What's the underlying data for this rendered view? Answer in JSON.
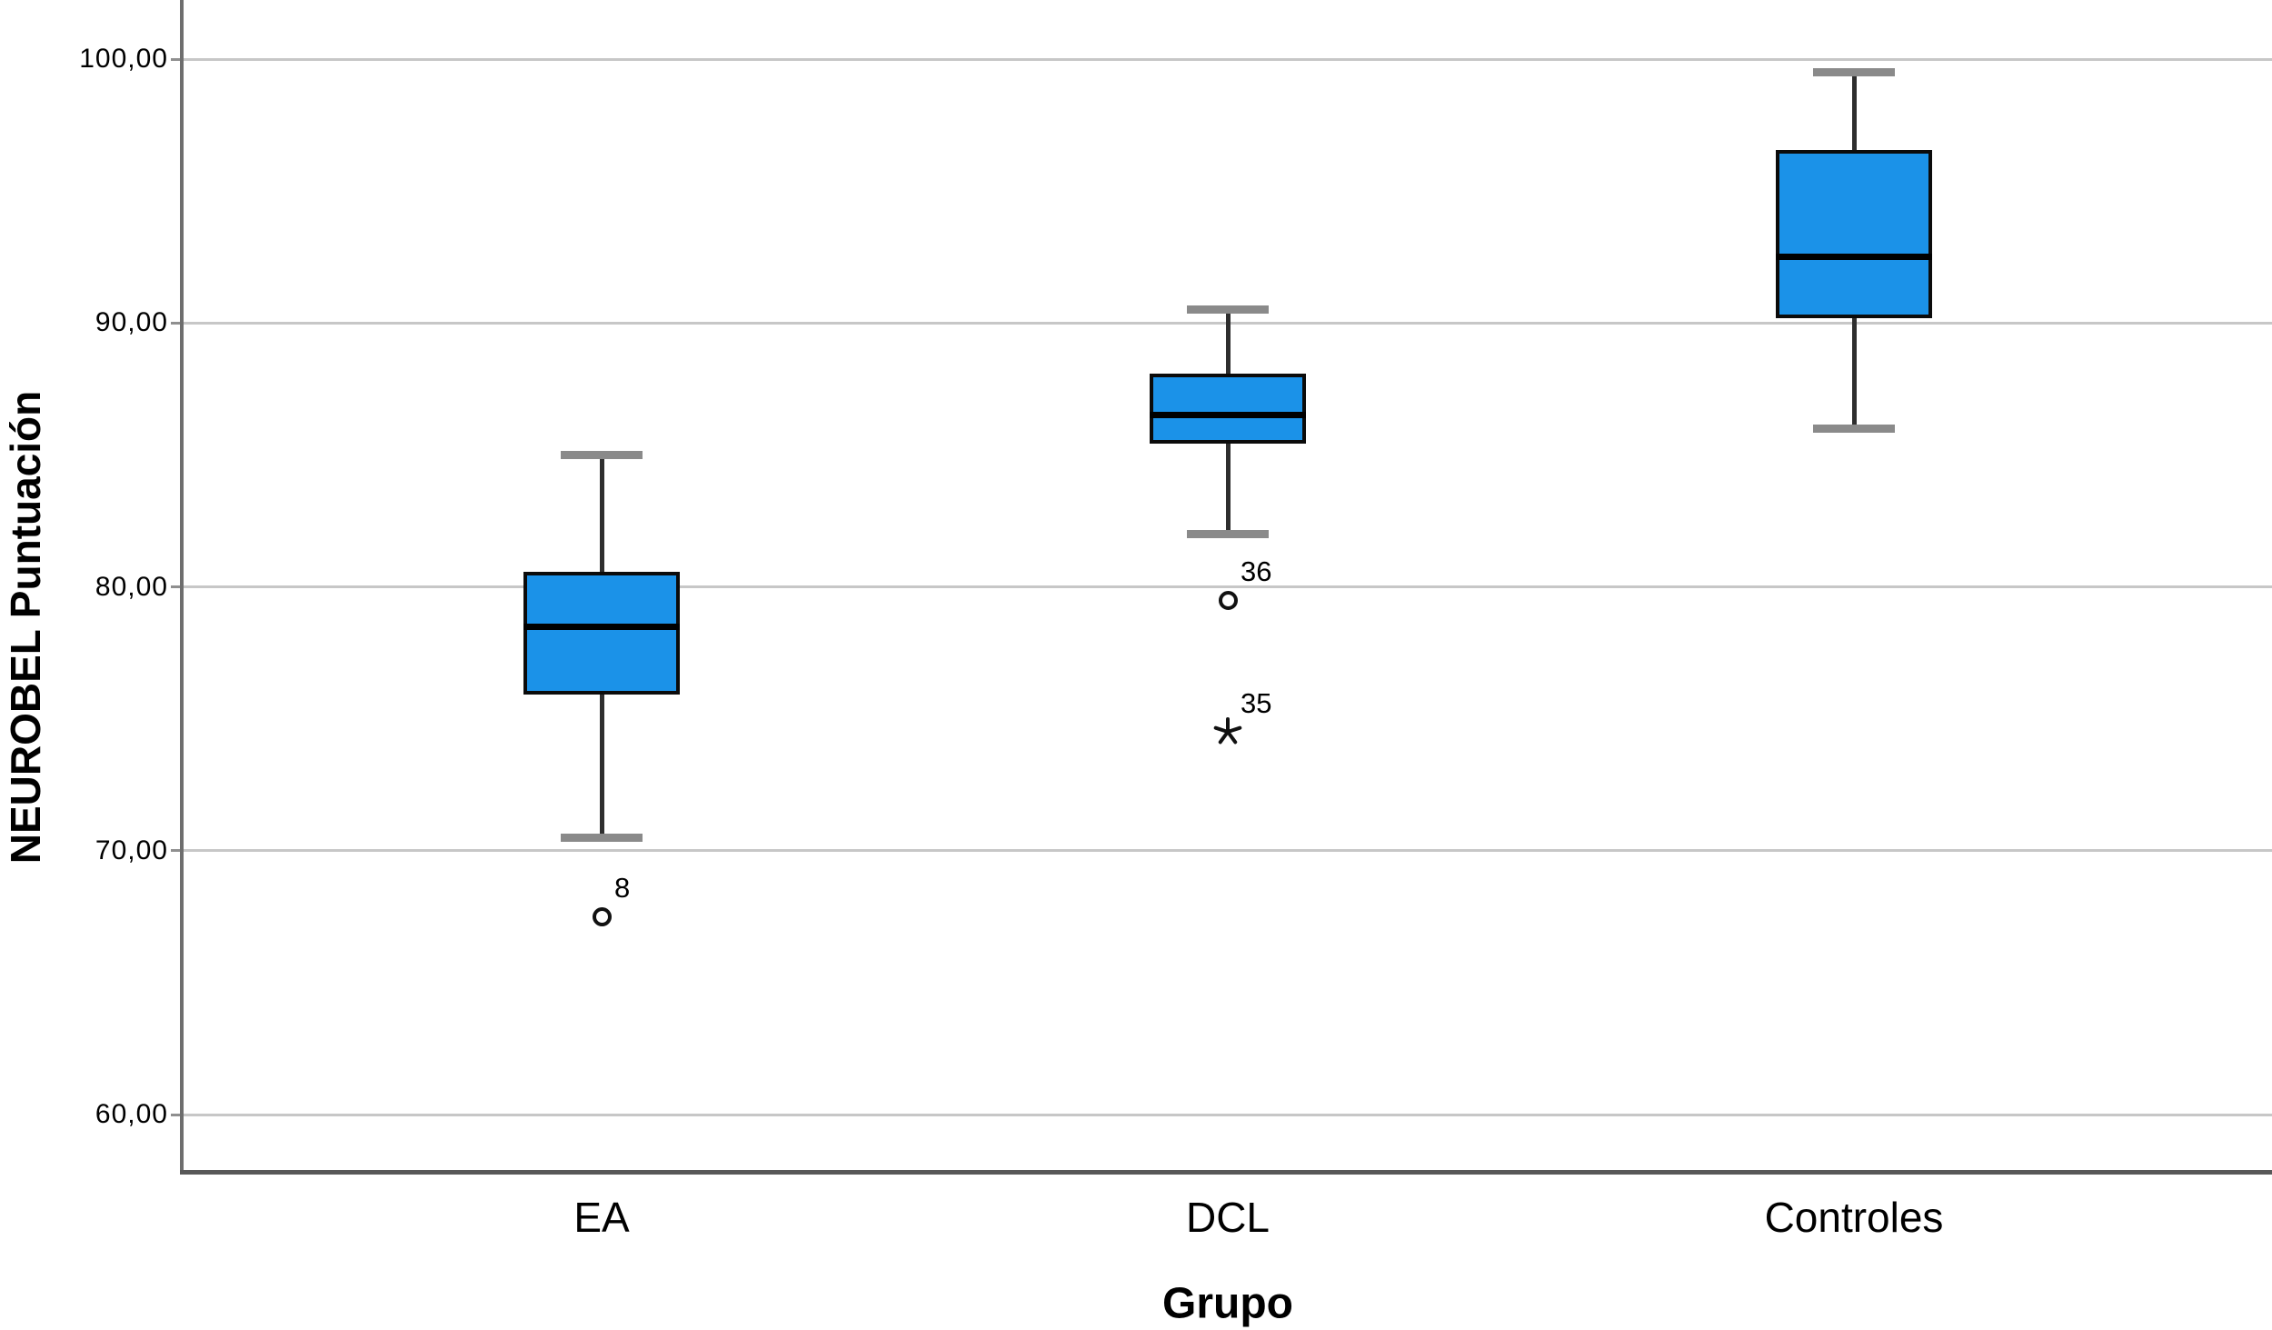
{
  "chart_data": {
    "type": "box",
    "title": "",
    "xlabel": "Grupo",
    "ylabel": "NEUROBEL Puntuación",
    "ylim": [
      57.8,
      102.2
    ],
    "grid": true,
    "y_ticks": [
      {
        "value": 100,
        "label": "100,00"
      },
      {
        "value": 90,
        "label": "90,00"
      },
      {
        "value": 80,
        "label": "80,00"
      },
      {
        "value": 70,
        "label": "70,00"
      },
      {
        "value": 60,
        "label": "60,00"
      }
    ],
    "categories": [
      "EA",
      "DCL",
      "Controles"
    ],
    "groups": [
      {
        "name": "EA",
        "whisker_min": 70.5,
        "q1": 76.0,
        "median": 78.5,
        "q3": 80.5,
        "whisker_max": 85.0,
        "outliers": [
          {
            "id": "8",
            "value": 67.5,
            "marker": "circle"
          }
        ]
      },
      {
        "name": "DCL",
        "whisker_min": 82.0,
        "q1": 85.5,
        "median": 86.5,
        "q3": 88.0,
        "whisker_max": 90.5,
        "outliers": [
          {
            "id": "36",
            "value": 79.5,
            "marker": "circle"
          },
          {
            "id": "35",
            "value": 74.5,
            "marker": "star"
          }
        ]
      },
      {
        "name": "Controles",
        "whisker_min": 86.0,
        "q1": 90.25,
        "median": 92.5,
        "q3": 96.5,
        "whisker_max": 99.5,
        "outliers": []
      }
    ],
    "colors": {
      "box_fill": "#1B92E8",
      "box_border": "#0b0b0b",
      "median": "#000000",
      "whisker_stem": "#2e2e2e",
      "whisker_cap": "#8a8a8a",
      "gridline": "#c7c7c7",
      "axis": "#6e6e6e",
      "text": "#000000"
    }
  }
}
